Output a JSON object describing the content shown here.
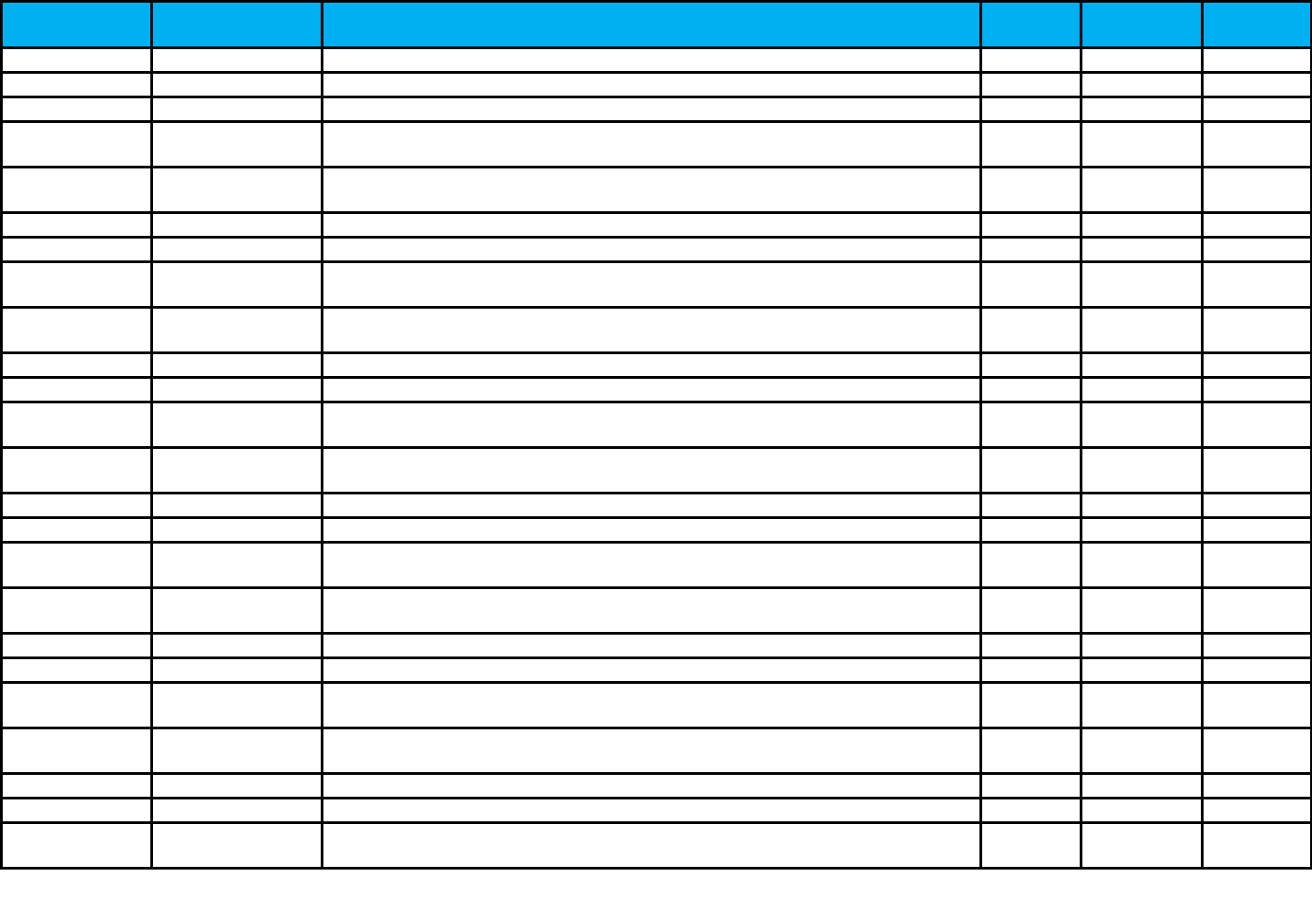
{
  "table": {
    "header_color": "#00b0f0",
    "border_color": "#000000",
    "headers": [
      "",
      "",
      "",
      "",
      "",
      ""
    ],
    "rows": [
      [
        "",
        "",
        "",
        "",
        "",
        ""
      ],
      [
        "",
        "",
        "",
        "",
        "",
        ""
      ],
      [
        "",
        "",
        "",
        "",
        "",
        ""
      ],
      [
        "",
        "",
        "",
        "",
        "",
        ""
      ],
      [
        "",
        "",
        "",
        "",
        "",
        ""
      ],
      [
        "",
        "",
        "",
        "",
        "",
        ""
      ],
      [
        "",
        "",
        "",
        "",
        "",
        ""
      ],
      [
        "",
        "",
        "",
        "",
        "",
        ""
      ],
      [
        "",
        "",
        "",
        "",
        "",
        ""
      ],
      [
        "",
        "",
        "",
        "",
        "",
        ""
      ],
      [
        "",
        "",
        "",
        "",
        "",
        ""
      ],
      [
        "",
        "",
        "",
        "",
        "",
        ""
      ],
      [
        "",
        "",
        "",
        "",
        "",
        ""
      ],
      [
        "",
        "",
        "",
        "",
        "",
        ""
      ],
      [
        "",
        "",
        "",
        "",
        "",
        ""
      ],
      [
        "",
        "",
        "",
        "",
        "",
        ""
      ],
      [
        "",
        "",
        "",
        "",
        "",
        ""
      ],
      [
        "",
        "",
        "",
        "",
        "",
        ""
      ],
      [
        "",
        "",
        "",
        "",
        "",
        ""
      ],
      [
        "",
        "",
        "",
        "",
        "",
        ""
      ],
      [
        "",
        "",
        "",
        "",
        "",
        ""
      ],
      [
        "",
        "",
        "",
        "",
        "",
        ""
      ],
      [
        "",
        "",
        "",
        "",
        "",
        ""
      ],
      [
        "",
        "",
        "",
        "",
        "",
        ""
      ]
    ]
  }
}
